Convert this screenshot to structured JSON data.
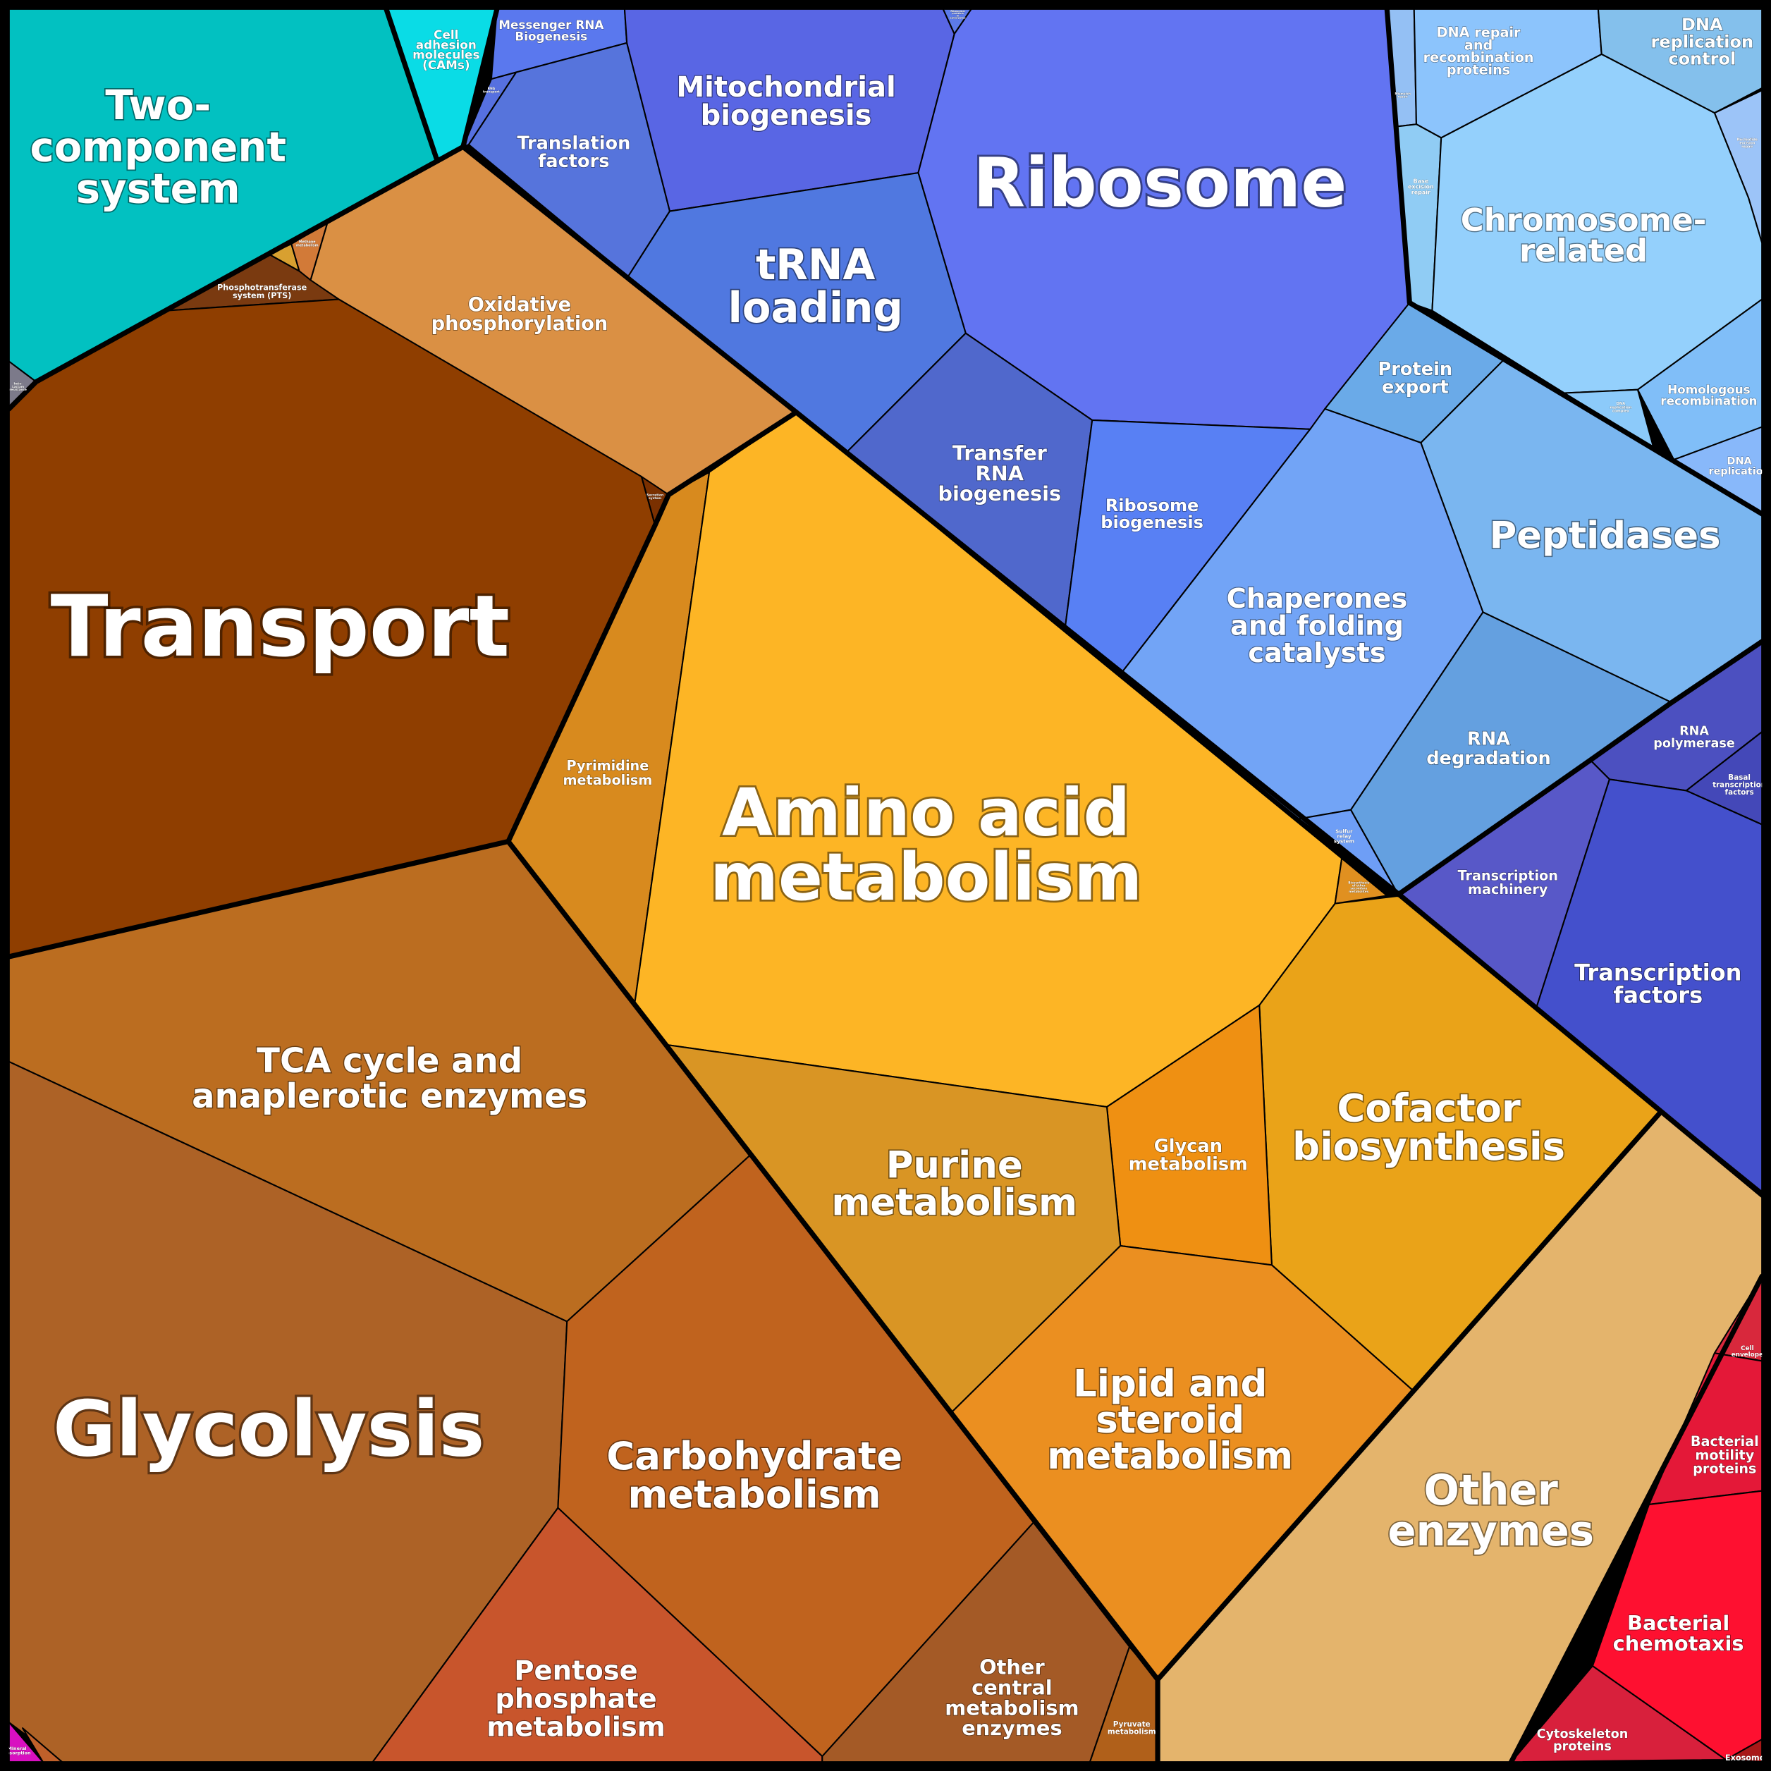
{
  "cells": {
    "two_component": {
      "lines": [
        "Two-",
        "component",
        "system"
      ],
      "color": "#02c1c1"
    },
    "cell_adhesion": {
      "lines": [
        "Cell",
        "adhesion",
        "molecules",
        "(CAMs)"
      ],
      "color": "#0adce6"
    },
    "beta_lactam": {
      "lines": [
        "beta-",
        "Lactam",
        "resistance"
      ],
      "color": "#7c7a8a"
    },
    "pts": {
      "lines": [
        "Phosphotransferase",
        "system (PTS)"
      ],
      "color": "#7a3a10"
    },
    "tiny_yellow": {
      "lines": [],
      "color": "#d8a030"
    },
    "methane": {
      "lines": [
        "Methane",
        "metabolism"
      ],
      "color": "#d27a38"
    },
    "oxphos": {
      "lines": [
        "Oxidative",
        "phosphorylation"
      ],
      "color": "#da9044"
    },
    "transport": {
      "lines": [
        "Transport"
      ],
      "color": "#8f3e00"
    },
    "secretion": {
      "lines": [
        "Secretion",
        "system"
      ],
      "color": "#7a3000"
    },
    "pyrimidine": {
      "lines": [
        "Pyrimidine",
        "metabolism"
      ],
      "color": "#d88a1e"
    },
    "amino_acid": {
      "lines": [
        "Amino acid",
        "metabolism"
      ],
      "color": "#fdb525"
    },
    "secondary": {
      "lines": [
        "Biosynthesis",
        "of other",
        "secondary",
        "metabolites"
      ],
      "color": "#e09020"
    },
    "cofactor": {
      "lines": [
        "Cofactor",
        "biosynthesis"
      ],
      "color": "#eaa318"
    },
    "glycan": {
      "lines": [
        "Glycan",
        "metabolism"
      ],
      "color": "#ef9012"
    },
    "purine": {
      "lines": [
        "Purine",
        "metabolism"
      ],
      "color": "#d99524"
    },
    "lipid": {
      "lines": [
        "Lipid and",
        "steroid",
        "metabolism"
      ],
      "color": "#eb8f20"
    },
    "other_enzymes": {
      "lines": [
        "Other",
        "enzymes"
      ],
      "color": "#e4b46c"
    },
    "tca": {
      "lines": [
        "TCA cycle and",
        "anaplerotic enzymes"
      ],
      "color": "#bb6d20"
    },
    "glycolysis": {
      "lines": [
        "Glycolysis"
      ],
      "color": "#ad6226"
    },
    "carbohydrate": {
      "lines": [
        "Carbohydrate",
        "metabolism"
      ],
      "color": "#c0631e"
    },
    "pentose": {
      "lines": [
        "Pentose",
        "phosphate",
        "metabolism"
      ],
      "color": "#c8552c"
    },
    "other_central": {
      "lines": [
        "Other",
        "central",
        "metabolism",
        "enzymes"
      ],
      "color": "#a45a26"
    },
    "pyruvate": {
      "lines": [
        "Pyruvate",
        "metabolism"
      ],
      "color": "#b0601a"
    },
    "mineral": {
      "lines": [
        "Mineral",
        "absorption"
      ],
      "color": "#d810c0"
    },
    "tiny_brown": {
      "lines": [],
      "color": "#c0602a"
    },
    "mrna": {
      "lines": [
        "Messenger RNA",
        "Biogenesis"
      ],
      "color": "#5a78ee"
    },
    "rna_transport": {
      "lines": [
        "RNA",
        "transport"
      ],
      "color": "#5670e0"
    },
    "translation_factors": {
      "lines": [
        "Translation",
        "factors"
      ],
      "color": "#5674dc"
    },
    "mito": {
      "lines": [
        "Mitochondrial",
        "biogenesis"
      ],
      "color": "#5966e4"
    },
    "ribo_euk": {
      "lines": [
        "Ribosomal",
        "proteins",
        "in",
        "eukaryotes"
      ],
      "color": "#5c7ae8"
    },
    "ribosome": {
      "lines": [
        "Ribosome"
      ],
      "color": "#6274f2"
    },
    "trna_loading": {
      "lines": [
        "tRNA",
        "loading"
      ],
      "color": "#5078e0"
    },
    "trna_biogenesis": {
      "lines": [
        "Transfer",
        "RNA",
        "biogenesis"
      ],
      "color": "#5068cc"
    },
    "ribosome_biogenesis": {
      "lines": [
        "Ribosome",
        "biogenesis"
      ],
      "color": "#5880f4"
    },
    "mismatch": {
      "lines": [
        "Mismatch",
        "repair"
      ],
      "color": "#94c0f4"
    },
    "dna_repair": {
      "lines": [
        "DNA repair",
        "and",
        "recombination",
        "proteins"
      ],
      "color": "#8cc4fc"
    },
    "dna_rep_control": {
      "lines": [
        "DNA",
        "replication",
        "control"
      ],
      "color": "#84c0ec"
    },
    "ner": {
      "lines": [
        "Nucleotide",
        "excision",
        "repair"
      ],
      "color": "#9cc4f8"
    },
    "ber": {
      "lines": [
        "Base",
        "excision",
        "repair"
      ],
      "color": "#90ccf4"
    },
    "chromosome": {
      "lines": [
        "Chromosome-",
        "related"
      ],
      "color": "#94d0fc"
    },
    "homologous": {
      "lines": [
        "Homologous",
        "recombination"
      ],
      "color": "#80bef8"
    },
    "dna_rep_complex": {
      "lines": [
        "DNA",
        "replication",
        "complex"
      ],
      "color": "#8ccafa"
    },
    "dna_replication": {
      "lines": [
        "DNA",
        "replication"
      ],
      "color": "#88b8fa"
    },
    "protein_export": {
      "lines": [
        "Protein",
        "export"
      ],
      "color": "#6aaae8"
    },
    "peptidases": {
      "lines": [
        "Peptidases"
      ],
      "color": "#7ab6f0"
    },
    "chaperones": {
      "lines": [
        "Chaperones",
        "and folding",
        "catalysts"
      ],
      "color": "#72a4f6"
    },
    "sulfur_relay": {
      "lines": [
        "Sulfur",
        "relay",
        "system"
      ],
      "color": "#6e9ef6"
    },
    "rna_degradation": {
      "lines": [
        "RNA",
        "degradation"
      ],
      "color": "#64a0e0"
    },
    "rna_polymerase": {
      "lines": [
        "RNA",
        "polymerase"
      ],
      "color": "#4c50c0"
    },
    "basal_tf": {
      "lines": [
        "Basal",
        "transcription",
        "factors"
      ],
      "color": "#4448b8"
    },
    "transcription_machinery": {
      "lines": [
        "Transcription",
        "machinery"
      ],
      "color": "#5858c8"
    },
    "transcription_factors": {
      "lines": [
        "Transcription",
        "factors"
      ],
      "color": "#4450cc"
    },
    "cell_envelope": {
      "lines": [
        "Cell",
        "envelope"
      ],
      "color": "#d8283c"
    },
    "motility": {
      "lines": [
        "Bacterial",
        "motility",
        "proteins"
      ],
      "color": "#e41838"
    },
    "chemotaxis": {
      "lines": [
        "Bacterial",
        "chemotaxis"
      ],
      "color": "#fe1030"
    },
    "cytoskeleton": {
      "lines": [
        "Cytoskeleton",
        "proteins"
      ],
      "color": "#d8203c"
    },
    "exosome": {
      "lines": [
        "Exosome"
      ],
      "color": "#a81818"
    }
  }
}
